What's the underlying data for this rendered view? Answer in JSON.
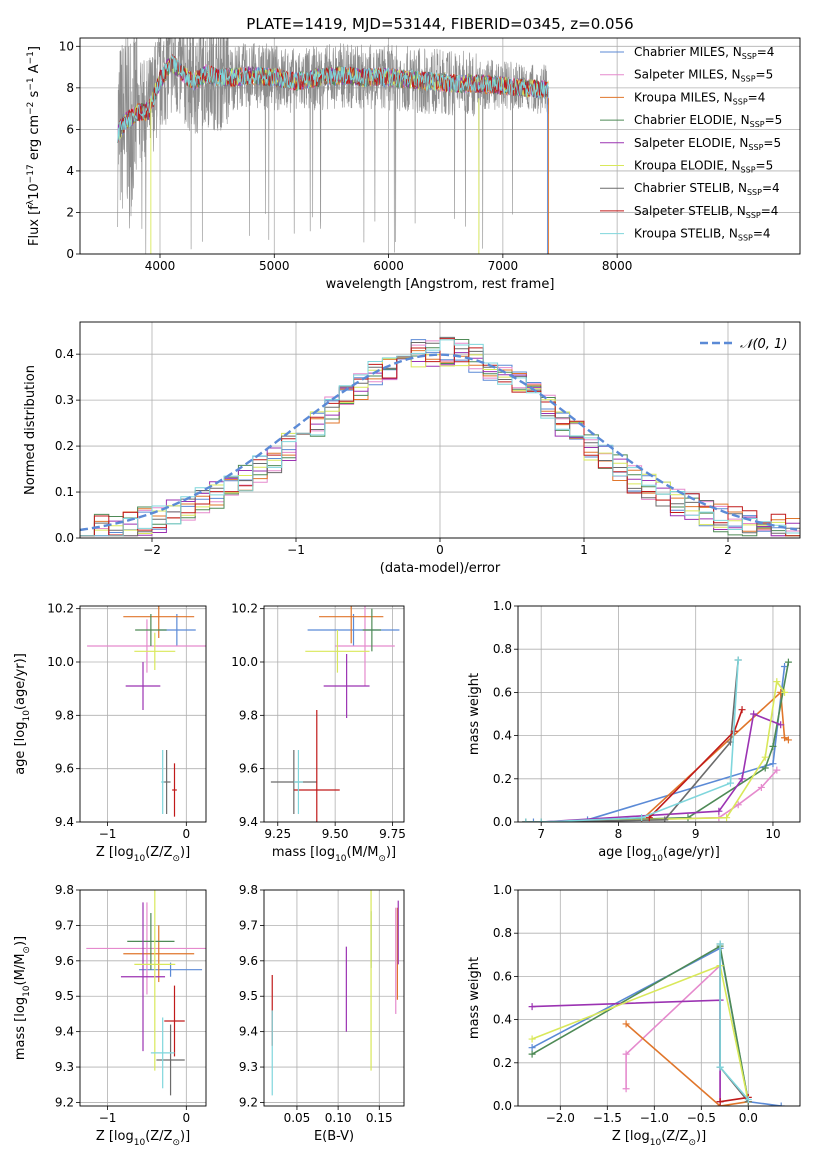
{
  "figure": {
    "title": "PLATE=1419, MJD=53144, FIBERID=0345, z=0.056"
  },
  "series_colors": {
    "Chabrier MILES": "#5b8ad6",
    "Salpeter MILES": "#e58acd",
    "Kroupa MILES": "#e0762b",
    "Chabrier ELODIE": "#4e8a56",
    "Salpeter ELODIE": "#9b33b2",
    "Kroupa ELODIE": "#d9e85a",
    "Chabrier STELIB": "#6b6b6b",
    "Salpeter STELIB": "#c01a1a",
    "Kroupa STELIB": "#7fd6dc",
    "data": "#8c8c8c",
    "normal": "#5b8ad6"
  },
  "chart_data": [
    {
      "id": "spectrum",
      "type": "line",
      "xlabel": "wavelength [Angstrom, rest frame]",
      "ylabel_parts": [
        "Flux [f",
        "λ",
        "10",
        "−17",
        " erg cm",
        "−2",
        " s",
        "−1",
        " A",
        "−1",
        "]"
      ],
      "xlim": [
        3300,
        9600
      ],
      "ylim": [
        0,
        10.4
      ],
      "xticks": [
        4000,
        5000,
        6000,
        7000,
        8000
      ],
      "yticks": [
        0,
        2,
        4,
        6,
        8,
        10
      ],
      "legend_position": "top-right",
      "legend": [
        {
          "pre": "Chabrier MILES, N",
          "sub": "SSP",
          "post": "=4"
        },
        {
          "pre": "Salpeter MILES, N",
          "sub": "SSP",
          "post": "=5"
        },
        {
          "pre": "Kroupa MILES, N",
          "sub": "SSP",
          "post": "=4"
        },
        {
          "pre": "Chabrier ELODIE, N",
          "sub": "SSP",
          "post": "=5"
        },
        {
          "pre": "Salpeter ELODIE, N",
          "sub": "SSP",
          "post": "=5"
        },
        {
          "pre": "Kroupa ELODIE, N",
          "sub": "SSP",
          "post": "=5"
        },
        {
          "pre": "Chabrier STELIB, N",
          "sub": "SSP",
          "post": "=4"
        },
        {
          "pre": "Salpeter STELIB, N",
          "sub": "SSP",
          "post": "=4"
        },
        {
          "pre": "Kroupa STELIB, N",
          "sub": "SSP",
          "post": "=4"
        }
      ],
      "model_continuum": {
        "x": [
          3630,
          3700,
          3800,
          3900,
          4000,
          4100,
          4200,
          4300,
          4400,
          4500,
          4600,
          4800,
          5000,
          5200,
          5400,
          5600,
          5800,
          6000,
          6200,
          6400,
          6600,
          6800,
          7000,
          7200,
          7400
        ],
        "y": [
          5.8,
          6.4,
          6.8,
          6.9,
          8.4,
          9.2,
          8.7,
          8.3,
          8.7,
          8.5,
          8.5,
          8.6,
          8.5,
          8.3,
          8.5,
          8.6,
          8.5,
          8.5,
          8.4,
          8.3,
          8.2,
          8.2,
          8.1,
          8.0,
          7.9
        ]
      }
    },
    {
      "id": "residuals",
      "type": "histogram",
      "xlabel": "(data-model)/error",
      "ylabel": "Normed distribution",
      "xlim": [
        -2.5,
        2.5
      ],
      "ylim": [
        0,
        0.47
      ],
      "xticks": [
        -2,
        -1,
        0,
        1,
        2
      ],
      "yticks": [
        0.0,
        0.1,
        0.2,
        0.3,
        0.4
      ],
      "bin_width": 0.1,
      "legend_position": "top-right",
      "normal_label": "𝒩(0, 1)"
    },
    {
      "id": "age_vs_Z",
      "type": "scatter",
      "xlabel_parts": [
        "Z [log",
        "10",
        "(Z/Z",
        "⊙",
        ")]"
      ],
      "ylabel_parts": [
        "age  [log",
        "10",
        "(age/yr)]"
      ],
      "xlim": [
        -1.35,
        0.25
      ],
      "ylim": [
        9.4,
        10.21
      ],
      "xticks": [
        -1,
        0
      ],
      "yticks": [
        9.4,
        9.6,
        9.8,
        10.0,
        10.2
      ],
      "points": [
        {
          "series": "Chabrier MILES",
          "x": -0.12,
          "y": 10.12,
          "xerr": 0.24,
          "yerr": 0.06
        },
        {
          "series": "Salpeter MILES",
          "x": -0.5,
          "y": 10.06,
          "xerr": 0.76,
          "yerr": 0.1
        },
        {
          "series": "Kroupa MILES",
          "x": -0.35,
          "y": 10.17,
          "xerr": 0.45,
          "yerr": 0.08
        },
        {
          "series": "Chabrier ELODIE",
          "x": -0.45,
          "y": 10.12,
          "xerr": 0.2,
          "yerr": 0.06
        },
        {
          "series": "Salpeter ELODIE",
          "x": -0.55,
          "y": 9.91,
          "xerr": 0.22,
          "yerr": 0.09
        },
        {
          "series": "Kroupa ELODIE",
          "x": -0.4,
          "y": 10.04,
          "xerr": 0.26,
          "yerr": 0.07
        },
        {
          "series": "Chabrier STELIB",
          "x": -0.25,
          "y": 9.55,
          "xerr": 0.05,
          "yerr": 0.12
        },
        {
          "series": "Salpeter STELIB",
          "x": -0.15,
          "y": 9.52,
          "xerr": 0.03,
          "yerr": 0.1
        },
        {
          "series": "Kroupa STELIB",
          "x": -0.3,
          "y": 9.55,
          "xerr": 0.02,
          "yerr": 0.12
        }
      ]
    },
    {
      "id": "age_vs_mass",
      "type": "scatter",
      "xlabel_parts": [
        "mass [log",
        "10",
        "(M/M",
        "⊙",
        ")]"
      ],
      "ylabel_parts": [
        "",
        "",
        "",
        "",
        ""
      ],
      "xlim": [
        9.19,
        9.8
      ],
      "ylim": [
        9.4,
        10.21
      ],
      "xticks": [
        9.25,
        9.5,
        9.75
      ],
      "yticks": [
        9.4,
        9.6,
        9.8,
        10.0,
        10.2
      ],
      "points": [
        {
          "series": "Chabrier MILES",
          "x": 9.58,
          "y": 10.12,
          "xerr": 0.2,
          "yerr": 0.06
        },
        {
          "series": "Salpeter MILES",
          "x": 9.63,
          "y": 10.06,
          "xerr": 0.13,
          "yerr": 0.15
        },
        {
          "series": "Kroupa MILES",
          "x": 9.57,
          "y": 10.17,
          "xerr": 0.14,
          "yerr": 0.1
        },
        {
          "series": "Chabrier ELODIE",
          "x": 9.66,
          "y": 10.12,
          "xerr": 0.04,
          "yerr": 0.08
        },
        {
          "series": "Salpeter ELODIE",
          "x": 9.55,
          "y": 9.91,
          "xerr": 0.1,
          "yerr": 0.12
        },
        {
          "series": "Kroupa ELODIE",
          "x": 9.51,
          "y": 10.04,
          "xerr": 0.14,
          "yerr": 0.08
        },
        {
          "series": "Chabrier STELIB",
          "x": 9.32,
          "y": 9.55,
          "xerr": 0.1,
          "yerr": 0.12
        },
        {
          "series": "Salpeter STELIB",
          "x": 9.42,
          "y": 9.52,
          "xerr": 0.1,
          "yerr": 0.3
        },
        {
          "series": "Kroupa STELIB",
          "x": 9.34,
          "y": 9.55,
          "xerr": 0.02,
          "yerr": 0.12
        }
      ]
    },
    {
      "id": "massweight_vs_age",
      "type": "line",
      "xlabel_parts": [
        "age  [log",
        "10",
        "(age/yr)]"
      ],
      "ylabel": "mass weight",
      "xlim": [
        6.7,
        10.35
      ],
      "ylim": [
        0,
        1.0
      ],
      "xticks": [
        7,
        8,
        9,
        10
      ],
      "yticks": [
        0.0,
        0.2,
        0.4,
        0.6,
        0.8,
        1.0
      ],
      "series": [
        {
          "name": "Chabrier MILES",
          "x": [
            6.8,
            6.9,
            7.0,
            7.6,
            10.0,
            10.15
          ],
          "y": [
            0,
            0,
            0,
            0.01,
            0.27,
            0.72
          ]
        },
        {
          "name": "Salpeter MILES",
          "x": [
            6.8,
            7.0,
            9.3,
            9.55,
            9.85,
            10.05
          ],
          "y": [
            0,
            0,
            0.02,
            0.08,
            0.16,
            0.24
          ]
        },
        {
          "name": "Kroupa MILES",
          "x": [
            7.0,
            8.3,
            10.1,
            10.15,
            10.2
          ],
          "y": [
            0,
            0.01,
            0.6,
            0.39,
            0.38
          ]
        },
        {
          "name": "Chabrier ELODIE",
          "x": [
            6.8,
            7.0,
            8.9,
            9.9,
            10.0,
            10.2
          ],
          "y": [
            0,
            0,
            0.02,
            0.25,
            0.35,
            0.74
          ]
        },
        {
          "name": "Salpeter ELODIE",
          "x": [
            6.8,
            7.0,
            9.3,
            9.6,
            9.75,
            10.1
          ],
          "y": [
            0,
            0,
            0.05,
            0.2,
            0.5,
            0.45
          ]
        },
        {
          "name": "Kroupa ELODIE",
          "x": [
            6.8,
            7.0,
            9.4,
            9.9,
            10.05,
            10.15
          ],
          "y": [
            0,
            0,
            0.02,
            0.3,
            0.65,
            0.6
          ]
        },
        {
          "name": "Chabrier STELIB",
          "x": [
            6.8,
            7.0,
            8.6,
            9.45,
            9.55
          ],
          "y": [
            0,
            0,
            0.01,
            0.37,
            0.75
          ]
        },
        {
          "name": "Salpeter STELIB",
          "x": [
            8.4,
            9.5,
            9.6
          ],
          "y": [
            0.02,
            0.42,
            0.52
          ]
        },
        {
          "name": "Kroupa STELIB",
          "x": [
            6.8,
            7.0,
            8.3,
            9.45,
            9.55
          ],
          "y": [
            0,
            0,
            0.02,
            0.18,
            0.75
          ]
        }
      ]
    },
    {
      "id": "mass_vs_Z",
      "type": "scatter",
      "xlabel_parts": [
        "Z [log",
        "10",
        "(Z/Z",
        "⊙",
        ")]"
      ],
      "ylabel_parts": [
        "mass [log",
        "10",
        "(M/M",
        "⊙",
        ")]"
      ],
      "xlim": [
        -1.35,
        0.25
      ],
      "ylim": [
        9.19,
        9.8
      ],
      "xticks": [
        -1,
        0
      ],
      "yticks": [
        9.2,
        9.3,
        9.4,
        9.5,
        9.6,
        9.7,
        9.8
      ],
      "points": [
        {
          "series": "Chabrier MILES",
          "x": -0.2,
          "y": 9.575,
          "xerr": 0.4,
          "yerr": 0.02
        },
        {
          "series": "Salpeter MILES",
          "x": -0.5,
          "y": 9.635,
          "xerr": 0.77,
          "yerr": 0.13
        },
        {
          "series": "Kroupa MILES",
          "x": -0.35,
          "y": 9.62,
          "xerr": 0.45,
          "yerr": 0.08
        },
        {
          "series": "Chabrier ELODIE",
          "x": -0.45,
          "y": 9.655,
          "xerr": 0.3,
          "yerr": 0.08
        },
        {
          "series": "Salpeter ELODIE",
          "x": -0.55,
          "y": 9.555,
          "xerr": 0.28,
          "yerr": 0.21
        },
        {
          "series": "Kroupa ELODIE",
          "x": -0.4,
          "y": 9.59,
          "xerr": 0.26,
          "yerr": 0.3
        },
        {
          "series": "Chabrier STELIB",
          "x": -0.2,
          "y": 9.32,
          "xerr": 0.18,
          "yerr": 0.1
        },
        {
          "series": "Salpeter STELIB",
          "x": -0.15,
          "y": 9.43,
          "xerr": 0.13,
          "yerr": 0.1
        },
        {
          "series": "Kroupa STELIB",
          "x": -0.3,
          "y": 9.34,
          "xerr": 0.15,
          "yerr": 0.1
        }
      ]
    },
    {
      "id": "mass_vs_EBV",
      "type": "scatter",
      "xlabel": "E(B-V)",
      "xlim": [
        0.01,
        0.18
      ],
      "ylim": [
        9.19,
        9.8
      ],
      "xticks": [
        0.05,
        0.1,
        0.15
      ],
      "yticks": [
        9.2,
        9.3,
        9.4,
        9.5,
        9.6,
        9.7,
        9.8
      ],
      "points": [
        {
          "series": "Salpeter STELIB",
          "x": 0.02,
          "y": 9.46,
          "xerr": 0,
          "yerr": 0.1
        },
        {
          "series": "Kroupa STELIB",
          "x": 0.02,
          "y": 9.34,
          "xerr": 0,
          "yerr": 0.12
        },
        {
          "series": "Salpeter ELODIE",
          "x": 0.11,
          "y": 9.52,
          "xerr": 0,
          "yerr": 0.12
        },
        {
          "series": "Chabrier ELODIE",
          "x": 0.14,
          "y": 9.66,
          "xerr": 0,
          "yerr": 0.08
        },
        {
          "series": "Kroupa ELODIE",
          "x": 0.14,
          "y": 9.55,
          "xerr": 0,
          "yerr": 0.26
        },
        {
          "series": "Salpeter MILES",
          "x": 0.17,
          "y": 9.6,
          "xerr": 0,
          "yerr": 0.15
        },
        {
          "series": "Kroupa MILES",
          "x": 0.172,
          "y": 9.62,
          "xerr": 0,
          "yerr": 0.13
        },
        {
          "series": "Salpeter ELODIE",
          "x": 0.173,
          "y": 9.68,
          "xerr": 0,
          "yerr": 0.09
        }
      ]
    },
    {
      "id": "massweight_vs_Z",
      "type": "line",
      "xlabel_parts": [
        "Z [log",
        "10",
        "(Z/Z",
        "⊙",
        ")]"
      ],
      "ylabel": "mass weight",
      "xlim": [
        -2.45,
        0.55
      ],
      "ylim": [
        0,
        1.0
      ],
      "xticks": [
        -2.0,
        -1.5,
        -1.0,
        -0.5,
        0.0
      ],
      "yticks": [
        0.0,
        0.2,
        0.4,
        0.6,
        0.8,
        1.0
      ],
      "series": [
        {
          "name": "Chabrier MILES",
          "x": [
            -2.3,
            -0.3,
            0.0,
            0.35
          ],
          "y": [
            0.27,
            0.73,
            0.02,
            0.0
          ]
        },
        {
          "name": "Salpeter MILES",
          "x": [
            -1.3,
            -1.3,
            -0.3,
            -0.3
          ],
          "y": [
            0.08,
            0.24,
            0.65,
            0.02
          ]
        },
        {
          "name": "Kroupa MILES",
          "x": [
            -1.3,
            -0.3,
            0.0
          ],
          "y": [
            0.38,
            0.0,
            0.02
          ]
        },
        {
          "name": "Chabrier ELODIE",
          "x": [
            -2.3,
            -0.3,
            0.0
          ],
          "y": [
            0.24,
            0.74,
            0.02
          ]
        },
        {
          "name": "Salpeter ELODIE",
          "x": [
            -2.3,
            -0.3,
            -0.3
          ],
          "y": [
            0.46,
            0.49,
            0.02
          ]
        },
        {
          "name": "Kroupa ELODIE",
          "x": [
            -2.3,
            -0.3,
            0.0
          ],
          "y": [
            0.31,
            0.65,
            0.02
          ]
        },
        {
          "name": "Chabrier STELIB",
          "x": [
            -0.3,
            -0.3,
            0.0
          ],
          "y": [
            0.75,
            0.18,
            0.02
          ]
        },
        {
          "name": "Salpeter STELIB",
          "x": [
            -0.3,
            0.0
          ],
          "y": [
            0.02,
            0.04
          ]
        },
        {
          "name": "Kroupa STELIB",
          "x": [
            -0.3,
            -0.3,
            0.0
          ],
          "y": [
            0.75,
            0.18,
            0.03
          ]
        }
      ]
    }
  ]
}
